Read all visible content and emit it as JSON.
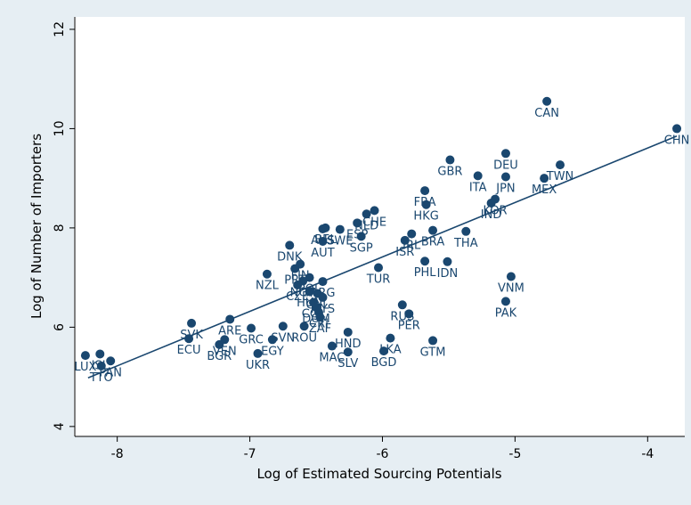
{
  "chart_data": {
    "type": "scatter",
    "title": "",
    "xlabel": "Log of Estimated Sourcing Potentials",
    "ylabel": "Log of Number of Importers",
    "xlim": [
      -8.32,
      -3.72
    ],
    "ylim": [
      3.8,
      12.25
    ],
    "xticks": [
      -8,
      -7,
      -6,
      -5,
      -4
    ],
    "yticks": [
      4,
      6,
      8,
      10,
      12
    ],
    "xtick_labels": [
      "-8",
      "-7",
      "-6",
      "-5",
      "-4"
    ],
    "ytick_labels": [
      "4",
      "6",
      "8",
      "10",
      "12"
    ],
    "grid": false,
    "legend": "none",
    "colors": {
      "marker": "#1a476f",
      "fit_line": "#1a476f",
      "label": "#1a476f",
      "plot_bg": "#ffffff",
      "outer_bg": "#e6eef3"
    },
    "fit_line": {
      "x": [
        -8.22,
        -3.78
      ],
      "y": [
        4.98,
        9.85
      ]
    },
    "points": [
      {
        "x": -3.78,
        "y": 10.0,
        "label": "CHN"
      },
      {
        "x": -4.76,
        "y": 10.55,
        "label": "CAN"
      },
      {
        "x": -5.07,
        "y": 9.5,
        "label": "DEU"
      },
      {
        "x": -5.49,
        "y": 9.37,
        "label": "GBR"
      },
      {
        "x": -5.28,
        "y": 9.05,
        "label": "ITA"
      },
      {
        "x": -5.07,
        "y": 9.03,
        "label": "JPN"
      },
      {
        "x": -4.66,
        "y": 9.27,
        "label": "TWN"
      },
      {
        "x": -4.78,
        "y": 9.0,
        "label": "MEX"
      },
      {
        "x": -5.68,
        "y": 8.75,
        "label": "FRA"
      },
      {
        "x": -5.15,
        "y": 8.58,
        "label": "KOR"
      },
      {
        "x": -5.18,
        "y": 8.5,
        "label": "IND"
      },
      {
        "x": -5.67,
        "y": 8.47,
        "label": "HKG"
      },
      {
        "x": -5.62,
        "y": 7.95,
        "label": "BRA"
      },
      {
        "x": -5.37,
        "y": 7.93,
        "label": "THA"
      },
      {
        "x": -5.78,
        "y": 7.88,
        "label": "IRL"
      },
      {
        "x": -5.83,
        "y": 7.75,
        "label": "ISR"
      },
      {
        "x": -5.68,
        "y": 7.33,
        "label": "PHL"
      },
      {
        "x": -5.51,
        "y": 7.32,
        "label": "IDN"
      },
      {
        "x": -6.03,
        "y": 7.2,
        "label": "TUR"
      },
      {
        "x": -6.06,
        "y": 8.35,
        "label": "CHE"
      },
      {
        "x": -6.12,
        "y": 8.28,
        "label": "NLD"
      },
      {
        "x": -6.19,
        "y": 8.1,
        "label": "ESP"
      },
      {
        "x": -6.32,
        "y": 7.97,
        "label": "SWE"
      },
      {
        "x": -6.43,
        "y": 8.0,
        "label": "BEL"
      },
      {
        "x": -6.45,
        "y": 7.98,
        "label": "AUS"
      },
      {
        "x": -6.16,
        "y": 7.83,
        "label": "SGP"
      },
      {
        "x": -6.45,
        "y": 7.73,
        "label": "AUT"
      },
      {
        "x": -6.7,
        "y": 7.65,
        "label": "DNK"
      },
      {
        "x": -6.87,
        "y": 7.07,
        "label": "NZL"
      },
      {
        "x": -6.62,
        "y": 7.27,
        "label": "FIN"
      },
      {
        "x": -6.66,
        "y": 7.18,
        "label": "PRT"
      },
      {
        "x": -6.55,
        "y": 7.0,
        "label": "POL"
      },
      {
        "x": -6.6,
        "y": 6.93,
        "label": "NOR"
      },
      {
        "x": -6.64,
        "y": 6.85,
        "label": "CZE"
      },
      {
        "x": -6.45,
        "y": 6.92,
        "label": "ARG"
      },
      {
        "x": -6.55,
        "y": 6.72,
        "label": "HUN"
      },
      {
        "x": -6.49,
        "y": 6.68,
        "label": "CHL"
      },
      {
        "x": -6.45,
        "y": 6.6,
        "label": "MYS"
      },
      {
        "x": -6.52,
        "y": 6.5,
        "label": "COL"
      },
      {
        "x": -6.5,
        "y": 6.4,
        "label": "DOM"
      },
      {
        "x": -6.48,
        "y": 6.3,
        "label": "CRI"
      },
      {
        "x": -6.47,
        "y": 6.2,
        "label": "ZAF"
      },
      {
        "x": -6.75,
        "y": 6.02,
        "label": "SVN"
      },
      {
        "x": -6.59,
        "y": 6.02,
        "label": "ROU"
      },
      {
        "x": -6.99,
        "y": 5.98,
        "label": "GRC"
      },
      {
        "x": -6.83,
        "y": 5.75,
        "label": "EGY"
      },
      {
        "x": -6.94,
        "y": 5.47,
        "label": "UKR"
      },
      {
        "x": -6.26,
        "y": 5.9,
        "label": "HND"
      },
      {
        "x": -6.38,
        "y": 5.62,
        "label": "MAC"
      },
      {
        "x": -6.26,
        "y": 5.5,
        "label": "SLV"
      },
      {
        "x": -5.94,
        "y": 5.78,
        "label": "LKA"
      },
      {
        "x": -5.99,
        "y": 5.52,
        "label": "BGD"
      },
      {
        "x": -5.62,
        "y": 5.73,
        "label": "GTM"
      },
      {
        "x": -5.85,
        "y": 6.45,
        "label": "RUS"
      },
      {
        "x": -5.8,
        "y": 6.27,
        "label": "PER"
      },
      {
        "x": -5.03,
        "y": 7.02,
        "label": "VNM"
      },
      {
        "x": -5.07,
        "y": 6.52,
        "label": "PAK"
      },
      {
        "x": -7.44,
        "y": 6.08,
        "label": "SVK"
      },
      {
        "x": -7.15,
        "y": 6.16,
        "label": "ARE"
      },
      {
        "x": -7.46,
        "y": 5.77,
        "label": "ECU"
      },
      {
        "x": -7.19,
        "y": 5.75,
        "label": "VEN"
      },
      {
        "x": -7.23,
        "y": 5.65,
        "label": "BGR"
      },
      {
        "x": -8.24,
        "y": 5.43,
        "label": "LUX"
      },
      {
        "x": -8.13,
        "y": 5.46,
        "label": "ISL"
      },
      {
        "x": -8.05,
        "y": 5.32,
        "label": "PAN"
      },
      {
        "x": -8.12,
        "y": 5.22,
        "label": "TTO"
      }
    ]
  }
}
